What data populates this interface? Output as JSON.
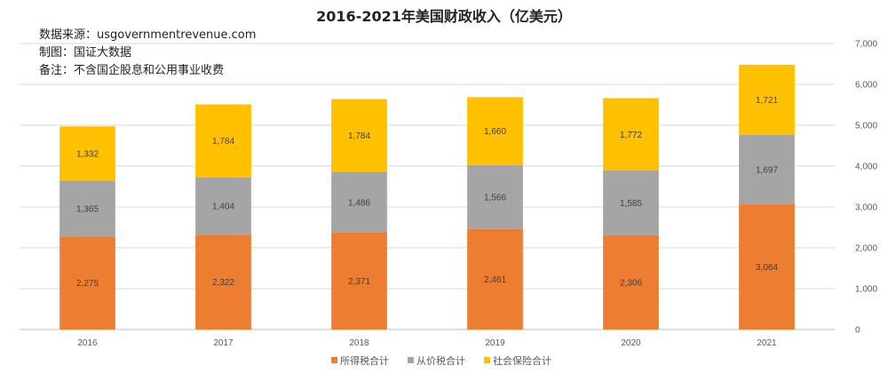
{
  "chart_data": {
    "type": "bar",
    "stacked": true,
    "title": "2016-2021年美国财政收入（亿美元）",
    "notes": [
      "数据来源：usgovernmentrevenue.com",
      "制图：国证大数据",
      "备注：不含国企股息和公用事业收费"
    ],
    "categories": [
      "2016",
      "2017",
      "2018",
      "2019",
      "2020",
      "2021"
    ],
    "series": [
      {
        "name": "所得税合计",
        "color": "#ED7D31",
        "values": [
          2275,
          2322,
          2371,
          2461,
          2306,
          3064
        ],
        "labels": [
          "2,275",
          "2,322",
          "2,371",
          "2,461",
          "2,306",
          "3,064"
        ]
      },
      {
        "name": "从价税合计",
        "color": "#A5A5A5",
        "values": [
          1365,
          1404,
          1486,
          1566,
          1585,
          1697
        ],
        "labels": [
          "1,365",
          "1,404",
          "1,486",
          "1,566",
          "1,585",
          "1,697"
        ]
      },
      {
        "name": "社会保险合计",
        "color": "#FFC000",
        "values": [
          1332,
          1784,
          1784,
          1660,
          1772,
          1721
        ],
        "labels": [
          "1,332",
          "1,784",
          "1,784",
          "1,660",
          "1,772",
          "1,721"
        ]
      }
    ],
    "ylim": [
      0,
      7000
    ],
    "yticks": [
      0,
      1000,
      2000,
      3000,
      4000,
      5000,
      6000,
      7000
    ],
    "ytick_labels": [
      "0",
      "1,000",
      "2,000",
      "3,000",
      "4,000",
      "5,000",
      "6,000",
      "7,000"
    ],
    "y_axis_side": "right",
    "grid": true,
    "legend": "bottom",
    "xlabel": "",
    "ylabel": ""
  }
}
